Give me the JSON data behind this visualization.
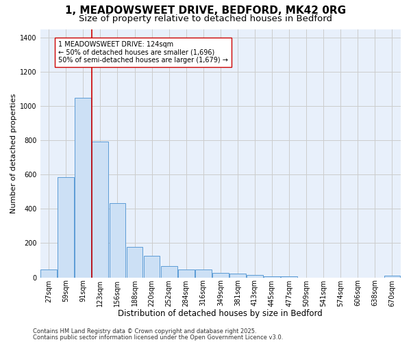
{
  "title1": "1, MEADOWSWEET DRIVE, BEDFORD, MK42 0RG",
  "title2": "Size of property relative to detached houses in Bedford",
  "xlabel": "Distribution of detached houses by size in Bedford",
  "ylabel": "Number of detached properties",
  "categories": [
    "27sqm",
    "59sqm",
    "91sqm",
    "123sqm",
    "156sqm",
    "188sqm",
    "220sqm",
    "252sqm",
    "284sqm",
    "316sqm",
    "349sqm",
    "381sqm",
    "413sqm",
    "445sqm",
    "477sqm",
    "509sqm",
    "541sqm",
    "574sqm",
    "606sqm",
    "638sqm",
    "670sqm"
  ],
  "values": [
    47,
    585,
    1050,
    795,
    435,
    178,
    125,
    65,
    47,
    47,
    25,
    22,
    15,
    8,
    5,
    0,
    0,
    0,
    0,
    0,
    10
  ],
  "bar_color": "#cce0f5",
  "bar_edge_color": "#5b9bd5",
  "grid_color": "#cccccc",
  "background_color": "#e8f0fb",
  "red_line_color": "#cc0000",
  "annotation_text": "1 MEADOWSWEET DRIVE: 124sqm\n← 50% of detached houses are smaller (1,696)\n50% of semi-detached houses are larger (1,679) →",
  "annotation_box_color": "#ffffff",
  "annotation_box_edge": "#cc0000",
  "footer1": "Contains HM Land Registry data © Crown copyright and database right 2025.",
  "footer2": "Contains public sector information licensed under the Open Government Licence v3.0.",
  "ylim": [
    0,
    1450
  ],
  "title1_fontsize": 11,
  "title2_fontsize": 9.5,
  "xlabel_fontsize": 8.5,
  "ylabel_fontsize": 8,
  "tick_fontsize": 7,
  "annotation_fontsize": 7,
  "footer_fontsize": 6
}
